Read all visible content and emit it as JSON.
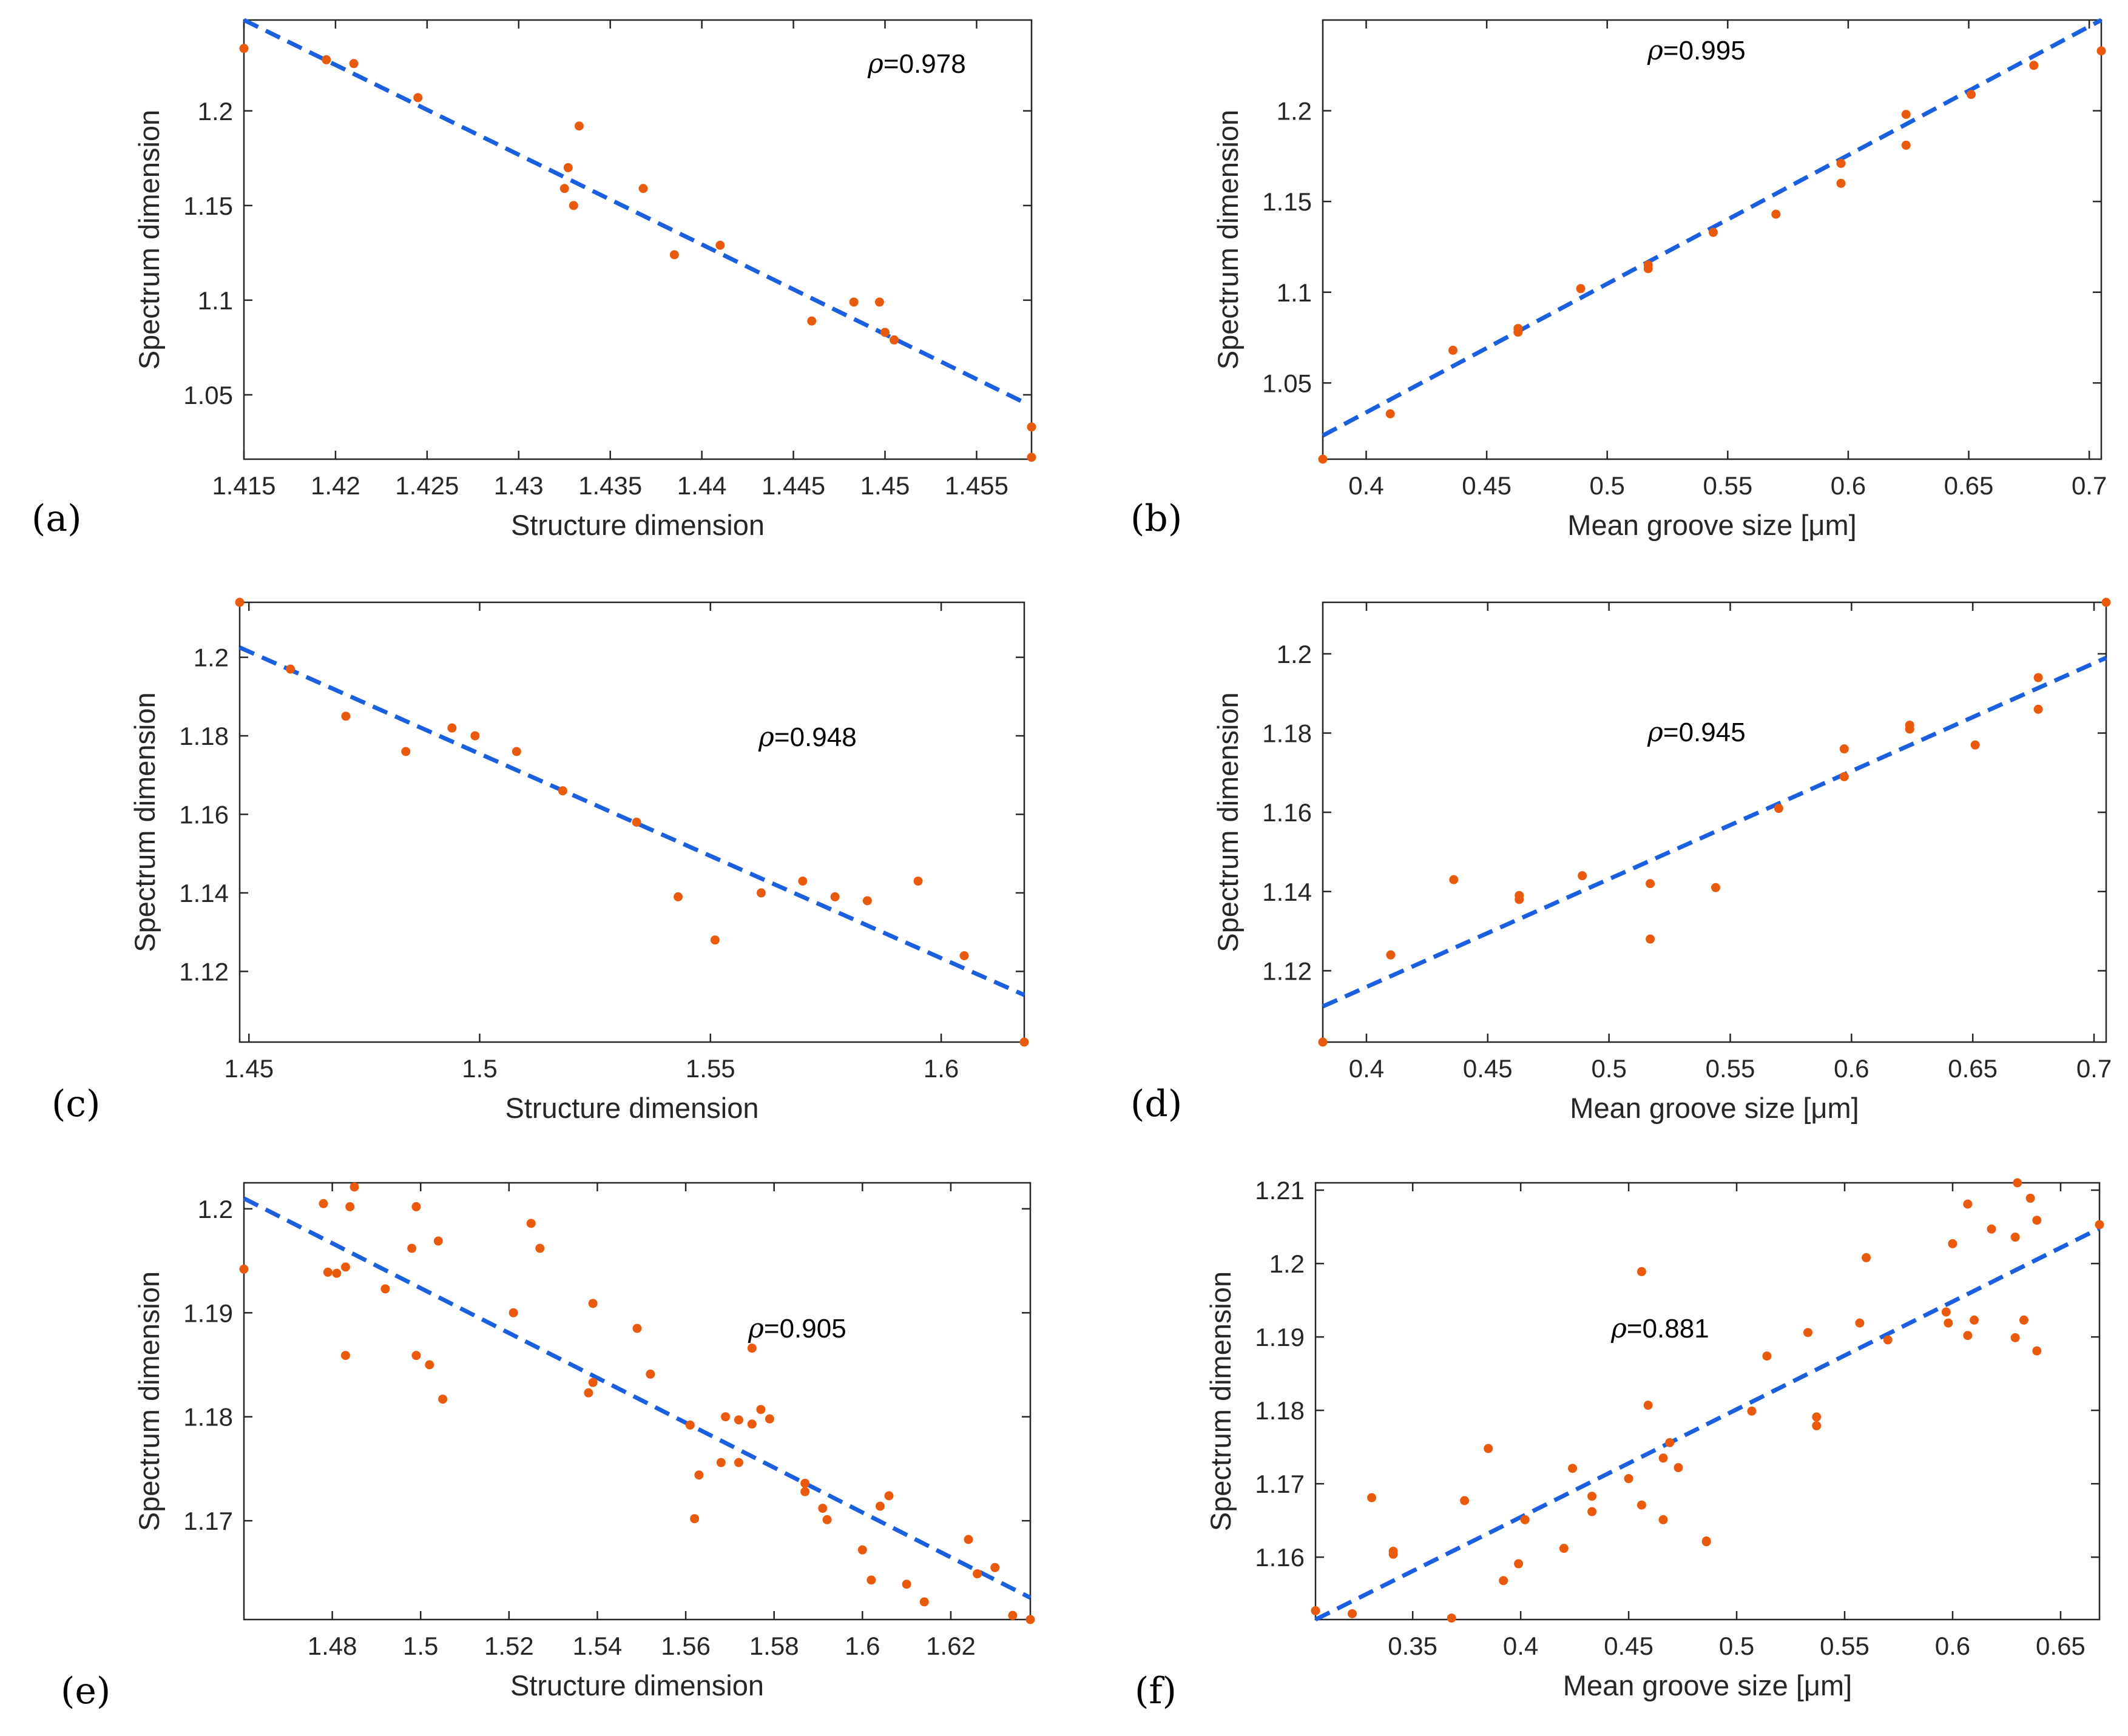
{
  "colors": {
    "points": "#ea5a0c",
    "fit_line": "#1a5fe0",
    "axes": "#262626"
  },
  "chart_data": [
    {
      "id": "a",
      "type": "scatter",
      "panel_label": "(a)",
      "xlabel": "Structure dimension",
      "ylabel": "Spectrum dimension",
      "annotation": {
        "symbol": "ρ",
        "text": "=0.978"
      },
      "xlim": [
        1.415,
        1.458
      ],
      "ylim": [
        1.016,
        1.248
      ],
      "xticks": [
        1.415,
        1.42,
        1.425,
        1.43,
        1.435,
        1.44,
        1.445,
        1.45,
        1.455
      ],
      "xtick_labels": [
        "1.415",
        "1.42",
        "1.425",
        "1.43",
        "1.435",
        "1.44",
        "1.445",
        "1.45",
        "1.455"
      ],
      "yticks": [
        1.05,
        1.1,
        1.15,
        1.2
      ],
      "ytick_labels": [
        "1.05",
        "1.1",
        "1.15",
        "1.2"
      ],
      "fit": {
        "x": [
          1.415,
          1.4578
        ],
        "y": [
          1.248,
          1.045
        ]
      },
      "points": [
        [
          1.415,
          1.233
        ],
        [
          1.4195,
          1.227
        ],
        [
          1.421,
          1.225
        ],
        [
          1.4245,
          1.207
        ],
        [
          1.4333,
          1.192
        ],
        [
          1.4327,
          1.17
        ],
        [
          1.4325,
          1.159
        ],
        [
          1.433,
          1.15
        ],
        [
          1.4368,
          1.159
        ],
        [
          1.4385,
          1.124
        ],
        [
          1.441,
          1.129
        ],
        [
          1.446,
          1.089
        ],
        [
          1.4483,
          1.099
        ],
        [
          1.4497,
          1.099
        ],
        [
          1.45,
          1.083
        ],
        [
          1.4505,
          1.079
        ],
        [
          1.458,
          1.033
        ],
        [
          1.458,
          1.017
        ]
      ]
    },
    {
      "id": "b",
      "type": "scatter",
      "panel_label": "(b)",
      "xlabel": "Mean groove size [μm]",
      "ylabel": "Spectrum dimension",
      "annotation": {
        "symbol": "ρ",
        "text": "=0.995"
      },
      "xlim": [
        0.382,
        0.705
      ],
      "ylim": [
        1.008,
        1.25
      ],
      "xticks": [
        0.4,
        0.45,
        0.5,
        0.55,
        0.6,
        0.65,
        0.7
      ],
      "xtick_labels": [
        "0.4",
        "0.45",
        "0.5",
        "0.55",
        "0.6",
        "0.65",
        "0.7"
      ],
      "yticks": [
        1.05,
        1.1,
        1.15,
        1.2
      ],
      "ytick_labels": [
        "1.05",
        "1.1",
        "1.15",
        "1.2"
      ],
      "fit": {
        "x": [
          0.382,
          0.705
        ],
        "y": [
          1.021,
          1.25
        ]
      },
      "points": [
        [
          0.382,
          1.008
        ],
        [
          0.41,
          1.033
        ],
        [
          0.436,
          1.068
        ],
        [
          0.463,
          1.08
        ],
        [
          0.463,
          1.078
        ],
        [
          0.489,
          1.102
        ],
        [
          0.517,
          1.113
        ],
        [
          0.517,
          1.115
        ],
        [
          0.544,
          1.133
        ],
        [
          0.57,
          1.143
        ],
        [
          0.597,
          1.171
        ],
        [
          0.597,
          1.16
        ],
        [
          0.624,
          1.198
        ],
        [
          0.624,
          1.181
        ],
        [
          0.651,
          1.209
        ],
        [
          0.677,
          1.225
        ],
        [
          0.705,
          1.233
        ]
      ]
    },
    {
      "id": "c",
      "type": "scatter",
      "panel_label": "(c)",
      "xlabel": "Structure dimension",
      "ylabel": "Spectrum dimension",
      "annotation": {
        "symbol": "ρ",
        "text": "=0.948"
      },
      "xlim": [
        1.448,
        1.618
      ],
      "ylim": [
        1.102,
        1.214
      ],
      "xticks": [
        1.45,
        1.5,
        1.55,
        1.6
      ],
      "xtick_labels": [
        "1.45",
        "1.5",
        "1.55",
        "1.6"
      ],
      "yticks": [
        1.12,
        1.14,
        1.16,
        1.18,
        1.2
      ],
      "ytick_labels": [
        "1.12",
        "1.14",
        "1.16",
        "1.18",
        "1.2"
      ],
      "fit": {
        "x": [
          1.448,
          1.618
        ],
        "y": [
          1.2025,
          1.114
        ]
      },
      "points": [
        [
          1.448,
          1.214
        ],
        [
          1.459,
          1.197
        ],
        [
          1.471,
          1.185
        ],
        [
          1.484,
          1.176
        ],
        [
          1.494,
          1.182
        ],
        [
          1.499,
          1.18
        ],
        [
          1.508,
          1.176
        ],
        [
          1.518,
          1.166
        ],
        [
          1.534,
          1.158
        ],
        [
          1.543,
          1.139
        ],
        [
          1.551,
          1.128
        ],
        [
          1.561,
          1.14
        ],
        [
          1.57,
          1.143
        ],
        [
          1.577,
          1.139
        ],
        [
          1.584,
          1.138
        ],
        [
          1.595,
          1.143
        ],
        [
          1.605,
          1.124
        ],
        [
          1.618,
          1.102
        ]
      ]
    },
    {
      "id": "d",
      "type": "scatter",
      "panel_label": "(d)",
      "xlabel": "Mean groove size [μm]",
      "ylabel": "Spectrum dimension",
      "annotation": {
        "symbol": "ρ",
        "text": "=0.945"
      },
      "xlim": [
        0.382,
        0.705
      ],
      "ylim": [
        1.102,
        1.213
      ],
      "xticks": [
        0.4,
        0.45,
        0.5,
        0.55,
        0.6,
        0.65,
        0.7
      ],
      "xtick_labels": [
        "0.4",
        "0.45",
        "0.5",
        "0.55",
        "0.6",
        "0.65",
        "0.7"
      ],
      "yticks": [
        1.12,
        1.14,
        1.16,
        1.18,
        1.2
      ],
      "ytick_labels": [
        "1.12",
        "1.14",
        "1.16",
        "1.18",
        "1.2"
      ],
      "fit": {
        "x": [
          0.382,
          0.705
        ],
        "y": [
          1.111,
          1.199
        ]
      },
      "points": [
        [
          0.382,
          1.102
        ],
        [
          0.41,
          1.124
        ],
        [
          0.436,
          1.143
        ],
        [
          0.463,
          1.139
        ],
        [
          0.463,
          1.138
        ],
        [
          0.489,
          1.144
        ],
        [
          0.517,
          1.142
        ],
        [
          0.517,
          1.128
        ],
        [
          0.544,
          1.141
        ],
        [
          0.57,
          1.161
        ],
        [
          0.597,
          1.176
        ],
        [
          0.597,
          1.169
        ],
        [
          0.624,
          1.182
        ],
        [
          0.624,
          1.181
        ],
        [
          0.651,
          1.177
        ],
        [
          0.677,
          1.194
        ],
        [
          0.677,
          1.186
        ],
        [
          0.705,
          1.213
        ]
      ]
    },
    {
      "id": "e",
      "type": "scatter",
      "panel_label": "(e)",
      "xlabel": "Structure dimension",
      "ylabel": "Spectrum dimension",
      "annotation": {
        "symbol": "ρ",
        "text": "=0.905"
      },
      "xlim": [
        1.46,
        1.638
      ],
      "ylim": [
        1.1605,
        1.2025
      ],
      "xticks": [
        1.48,
        1.5,
        1.52,
        1.54,
        1.56,
        1.58,
        1.6,
        1.62
      ],
      "xtick_labels": [
        "1.48",
        "1.5",
        "1.52",
        "1.54",
        "1.56",
        "1.58",
        "1.6",
        "1.62"
      ],
      "yticks": [
        1.17,
        1.18,
        1.19,
        1.2
      ],
      "ytick_labels": [
        "1.17",
        "1.18",
        "1.19",
        "1.2"
      ],
      "fit": {
        "x": [
          1.46,
          1.638
        ],
        "y": [
          1.201,
          1.1626
        ]
      },
      "points": [
        [
          1.46,
          1.1942
        ],
        [
          1.478,
          1.2005
        ],
        [
          1.479,
          1.1939
        ],
        [
          1.481,
          1.1938
        ],
        [
          1.483,
          1.1859
        ],
        [
          1.483,
          1.1944
        ],
        [
          1.484,
          1.2002
        ],
        [
          1.485,
          1.2021
        ],
        [
          1.492,
          1.1923
        ],
        [
          1.498,
          1.1962
        ],
        [
          1.499,
          1.2002
        ],
        [
          1.499,
          1.1859
        ],
        [
          1.502,
          1.185
        ],
        [
          1.504,
          1.1969
        ],
        [
          1.505,
          1.1817
        ],
        [
          1.521,
          1.19
        ],
        [
          1.525,
          1.1986
        ],
        [
          1.527,
          1.1962
        ],
        [
          1.538,
          1.1823
        ],
        [
          1.539,
          1.1909
        ],
        [
          1.539,
          1.1833
        ],
        [
          1.549,
          1.1885
        ],
        [
          1.552,
          1.1841
        ],
        [
          1.561,
          1.1792
        ],
        [
          1.562,
          1.1702
        ],
        [
          1.563,
          1.1744
        ],
        [
          1.568,
          1.1756
        ],
        [
          1.569,
          1.18
        ],
        [
          1.572,
          1.1756
        ],
        [
          1.572,
          1.1797
        ],
        [
          1.575,
          1.1866
        ],
        [
          1.575,
          1.1793
        ],
        [
          1.577,
          1.1807
        ],
        [
          1.579,
          1.1798
        ],
        [
          1.587,
          1.1736
        ],
        [
          1.587,
          1.1728
        ],
        [
          1.591,
          1.1712
        ],
        [
          1.592,
          1.1701
        ],
        [
          1.6,
          1.1672
        ],
        [
          1.602,
          1.1643
        ],
        [
          1.604,
          1.1714
        ],
        [
          1.606,
          1.1724
        ],
        [
          1.61,
          1.1639
        ],
        [
          1.614,
          1.1622
        ],
        [
          1.624,
          1.1682
        ],
        [
          1.626,
          1.1649
        ],
        [
          1.63,
          1.1655
        ],
        [
          1.634,
          1.1609
        ],
        [
          1.638,
          1.1605
        ]
      ]
    },
    {
      "id": "f",
      "type": "scatter",
      "panel_label": "(f)",
      "xlabel": "Mean groove size [μm]",
      "ylabel": "Spectrum dimension",
      "annotation": {
        "symbol": "ρ",
        "text": "=0.881"
      },
      "xlim": [
        0.305,
        0.668
      ],
      "ylim": [
        1.1515,
        1.211
      ],
      "xticks": [
        0.35,
        0.4,
        0.45,
        0.5,
        0.55,
        0.6,
        0.65
      ],
      "xtick_labels": [
        "0.35",
        "0.4",
        "0.45",
        "0.5",
        "0.55",
        "0.6",
        "0.65"
      ],
      "yticks": [
        1.16,
        1.17,
        1.18,
        1.19,
        1.2,
        1.21
      ],
      "ytick_labels": [
        "1.16",
        "1.17",
        "1.18",
        "1.19",
        "1.2",
        "1.21"
      ],
      "fit": {
        "x": [
          0.305,
          0.668
        ],
        "y": [
          1.1515,
          1.2048
        ]
      },
      "points": [
        [
          0.305,
          1.1527
        ],
        [
          0.322,
          1.1523
        ],
        [
          0.331,
          1.1681
        ],
        [
          0.341,
          1.1604
        ],
        [
          0.341,
          1.1608
        ],
        [
          0.368,
          1.1517
        ],
        [
          0.374,
          1.1677
        ],
        [
          0.385,
          1.1748
        ],
        [
          0.392,
          1.1568
        ],
        [
          0.399,
          1.1591
        ],
        [
          0.402,
          1.1651
        ],
        [
          0.42,
          1.1612
        ],
        [
          0.424,
          1.1721
        ],
        [
          0.433,
          1.1683
        ],
        [
          0.433,
          1.1662
        ],
        [
          0.45,
          1.1707
        ],
        [
          0.456,
          1.1989
        ],
        [
          0.456,
          1.1671
        ],
        [
          0.459,
          1.1807
        ],
        [
          0.466,
          1.1735
        ],
        [
          0.466,
          1.1651
        ],
        [
          0.469,
          1.1756
        ],
        [
          0.473,
          1.1722
        ],
        [
          0.486,
          1.1621
        ],
        [
          0.486,
          1.1622
        ],
        [
          0.507,
          1.1799
        ],
        [
          0.514,
          1.1874
        ],
        [
          0.533,
          1.1906
        ],
        [
          0.537,
          1.1791
        ],
        [
          0.537,
          1.1779
        ],
        [
          0.557,
          1.1919
        ],
        [
          0.56,
          1.2008
        ],
        [
          0.57,
          1.1896
        ],
        [
          0.597,
          1.1934
        ],
        [
          0.598,
          1.1919
        ],
        [
          0.6,
          1.2027
        ],
        [
          0.607,
          1.2081
        ],
        [
          0.607,
          1.1902
        ],
        [
          0.61,
          1.1923
        ],
        [
          0.618,
          1.2047
        ],
        [
          0.629,
          1.2036
        ],
        [
          0.629,
          1.1899
        ],
        [
          0.63,
          1.211
        ],
        [
          0.633,
          1.1923
        ],
        [
          0.636,
          1.2089
        ],
        [
          0.639,
          1.2059
        ],
        [
          0.639,
          1.1881
        ],
        [
          0.668,
          1.2053
        ]
      ]
    }
  ]
}
